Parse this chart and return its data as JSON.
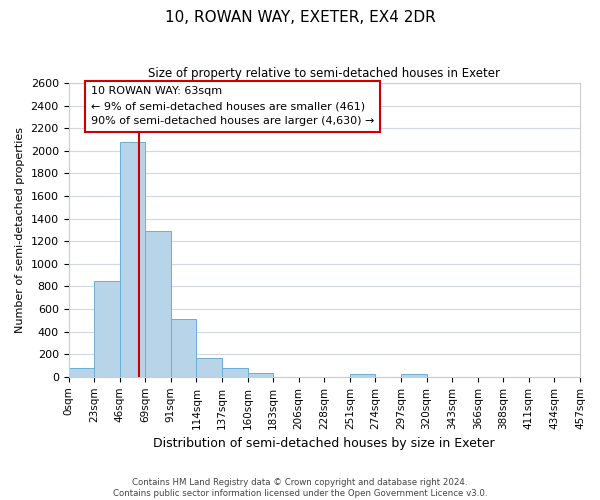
{
  "title": "10, ROWAN WAY, EXETER, EX4 2DR",
  "subtitle": "Size of property relative to semi-detached houses in Exeter",
  "xlabel": "Distribution of semi-detached houses by size in Exeter",
  "ylabel": "Number of semi-detached properties",
  "bin_edges": [
    0,
    23,
    46,
    69,
    92,
    115,
    138,
    161,
    184,
    207,
    230,
    253,
    276,
    299,
    322,
    345,
    368,
    391,
    414,
    437,
    460
  ],
  "bin_labels": [
    "0sqm",
    "23sqm",
    "46sqm",
    "69sqm",
    "91sqm",
    "114sqm",
    "137sqm",
    "160sqm",
    "183sqm",
    "206sqm",
    "228sqm",
    "251sqm",
    "274sqm",
    "297sqm",
    "320sqm",
    "343sqm",
    "366sqm",
    "388sqm",
    "411sqm",
    "434sqm",
    "457sqm"
  ],
  "counts": [
    75,
    850,
    2080,
    1290,
    510,
    165,
    75,
    35,
    0,
    0,
    0,
    25,
    0,
    25,
    0,
    0,
    0,
    0,
    0,
    0
  ],
  "bar_color": "#b8d4e8",
  "bar_edge_color": "#6aafd6",
  "property_value": 63,
  "vline_color": "#cc0000",
  "annotation_title": "10 ROWAN WAY: 63sqm",
  "annotation_smaller": "← 9% of semi-detached houses are smaller (461)",
  "annotation_larger": "90% of semi-detached houses are larger (4,630) →",
  "annotation_box_edge": "#cc0000",
  "ylim": [
    0,
    2600
  ],
  "yticks": [
    0,
    200,
    400,
    600,
    800,
    1000,
    1200,
    1400,
    1600,
    1800,
    2000,
    2200,
    2400,
    2600
  ],
  "footnote1": "Contains HM Land Registry data © Crown copyright and database right 2024.",
  "footnote2": "Contains public sector information licensed under the Open Government Licence v3.0.",
  "background_color": "#ffffff",
  "grid_color": "#d0d8e8"
}
